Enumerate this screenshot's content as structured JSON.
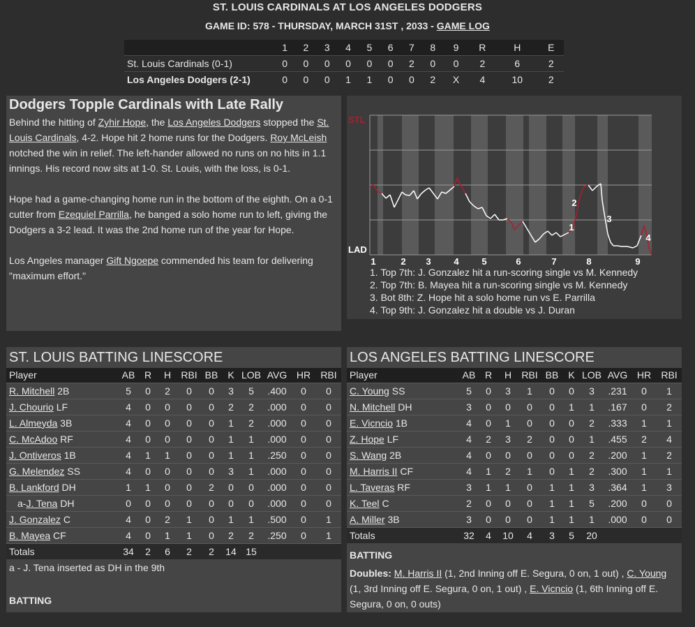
{
  "header": {
    "title": "ST. LOUIS CARDINALS AT LOS ANGELES DODGERS",
    "game_line": "GAME ID: 578 - THURSDAY, MARCH 31ST , 2033 - ",
    "game_log": "GAME LOG"
  },
  "linescore": {
    "innings": [
      "1",
      "2",
      "3",
      "4",
      "5",
      "6",
      "7",
      "8",
      "9",
      "R",
      "H",
      "E"
    ],
    "teams": [
      {
        "name": "St. Louis Cardinals (0-1)",
        "scores": [
          "0",
          "0",
          "0",
          "0",
          "0",
          "0",
          "2",
          "0",
          "0",
          "2",
          "6",
          "2"
        ]
      },
      {
        "name": "Los Angeles Dodgers (2-1)",
        "scores": [
          "0",
          "0",
          "0",
          "1",
          "1",
          "0",
          "0",
          "2",
          "X",
          "4",
          "10",
          "2"
        ]
      }
    ]
  },
  "recap": {
    "headline": "Dodgers Topple Cardinals with Late Rally",
    "p1": [
      {
        "t": "Behind the hitting of "
      },
      {
        "t": "Zyhir Hope",
        "link": true
      },
      {
        "t": ", the "
      },
      {
        "t": "Los Angeles Dodgers",
        "link": true
      },
      {
        "t": " stopped the "
      },
      {
        "t": "St. Louis Cardinals",
        "link": true
      },
      {
        "t": ", 4-2. Hope hit 2 home runs for the Dodgers. "
      },
      {
        "t": "Roy McLeish",
        "link": true
      },
      {
        "t": " notched the win in relief. The left-hander allowed no runs on no hits in 1.1 innings. His record now sits at 1-0. St. Louis, with the loss, is 0-1."
      }
    ],
    "p2": [
      {
        "t": "Hope had a game-changing home run in the bottom of the eighth. On a 0-1 cutter from "
      },
      {
        "t": "Ezequiel Parrilla",
        "link": true
      },
      {
        "t": ", he banged a solo home run to left, giving the Dodgers a 3-2 lead. It was the 2nd home run of the year for Hope."
      }
    ],
    "p3": [
      {
        "t": "Los Angeles manager "
      },
      {
        "t": "Gift Ngoepe",
        "link": true
      },
      {
        "t": " commended his team for delivering \"maximum effort.\""
      }
    ]
  },
  "win_probability": {
    "top_label": "STL",
    "bottom_label": "LAD",
    "inning_labels": [
      "1",
      "2",
      "3",
      "4",
      "5",
      "6",
      "7",
      "8",
      "9"
    ],
    "marker_labels": [
      "1",
      "2",
      "3",
      "4"
    ],
    "events": [
      "1. Top 7th: J. Gonzalez hit a run-scoring single vs M. Kennedy",
      "2. Top 7th: B. Mayea hit a run-scoring single vs M. Kennedy",
      "3. Bot 8th: Z. Hope hit a solo home run vs E. Parrilla",
      "4. Top 9th: J. Gonzalez hit a double vs J. Duran"
    ],
    "colors": {
      "stl": "#b01c2e",
      "lad": "#ffffff"
    }
  },
  "stl_batting": {
    "title": "ST. LOUIS BATTING LINESCORE",
    "columns": [
      "Player",
      "AB",
      "R",
      "H",
      "RBI",
      "BB",
      "K",
      "LOB",
      "AVG",
      "HR",
      "RBI"
    ],
    "rows": [
      {
        "name": "R. Mitchell",
        "pos": "2B",
        "stats": [
          "5",
          "0",
          "2",
          "0",
          "0",
          "3",
          "5",
          ".400",
          "0",
          "0"
        ]
      },
      {
        "name": "J. Chourio",
        "pos": "LF",
        "stats": [
          "4",
          "0",
          "0",
          "0",
          "0",
          "2",
          "2",
          ".000",
          "0",
          "0"
        ]
      },
      {
        "name": "L. Almeyda",
        "pos": "3B",
        "stats": [
          "4",
          "0",
          "0",
          "0",
          "0",
          "1",
          "2",
          ".000",
          "0",
          "0"
        ]
      },
      {
        "name": "C. McAdoo",
        "pos": "RF",
        "stats": [
          "4",
          "0",
          "0",
          "0",
          "0",
          "1",
          "1",
          ".000",
          "0",
          "0"
        ]
      },
      {
        "name": "J. Ontiveros",
        "pos": "1B",
        "stats": [
          "4",
          "1",
          "1",
          "0",
          "0",
          "1",
          "1",
          ".250",
          "0",
          "0"
        ]
      },
      {
        "name": "G. Melendez",
        "pos": "SS",
        "stats": [
          "4",
          "0",
          "0",
          "0",
          "0",
          "3",
          "1",
          ".000",
          "0",
          "0"
        ]
      },
      {
        "name": "B. Lankford",
        "pos": "DH",
        "stats": [
          "1",
          "1",
          "0",
          "0",
          "2",
          "0",
          "0",
          ".000",
          "0",
          "0"
        ]
      },
      {
        "name": "J. Tena",
        "prefix": "a-",
        "pos": "DH",
        "stats": [
          "0",
          "0",
          "0",
          "0",
          "0",
          "0",
          "0",
          ".000",
          "0",
          "0"
        ]
      },
      {
        "name": "J. Gonzalez",
        "pos": "C",
        "stats": [
          "4",
          "0",
          "2",
          "1",
          "0",
          "1",
          "1",
          ".500",
          "0",
          "1"
        ]
      },
      {
        "name": "B. Mayea",
        "pos": "CF",
        "stats": [
          "4",
          "0",
          "1",
          "1",
          "0",
          "2",
          "2",
          ".250",
          "0",
          "1"
        ]
      }
    ],
    "totals": {
      "label": "Totals",
      "stats": [
        "34",
        "2",
        "6",
        "2",
        "2",
        "14",
        "15",
        "",
        "",
        ""
      ]
    },
    "note": "a - J. Tena inserted as DH in the 9th",
    "batting_label": "BATTING"
  },
  "lad_batting": {
    "title": "LOS ANGELES BATTING LINESCORE",
    "columns": [
      "Player",
      "AB",
      "R",
      "H",
      "RBI",
      "BB",
      "K",
      "LOB",
      "AVG",
      "HR",
      "RBI"
    ],
    "rows": [
      {
        "name": "C. Young",
        "pos": "SS",
        "stats": [
          "5",
          "0",
          "3",
          "1",
          "0",
          "0",
          "3",
          ".231",
          "0",
          "1"
        ]
      },
      {
        "name": "N. Mitchell",
        "pos": "DH",
        "stats": [
          "3",
          "0",
          "0",
          "0",
          "0",
          "1",
          "1",
          ".167",
          "0",
          "2"
        ]
      },
      {
        "name": "E. Vicncio",
        "pos": "1B",
        "stats": [
          "4",
          "0",
          "1",
          "0",
          "0",
          "0",
          "2",
          ".333",
          "1",
          "1"
        ]
      },
      {
        "name": "Z. Hope",
        "pos": "LF",
        "stats": [
          "4",
          "2",
          "3",
          "2",
          "0",
          "0",
          "1",
          ".455",
          "2",
          "4"
        ]
      },
      {
        "name": "S. Wang",
        "pos": "2B",
        "stats": [
          "4",
          "0",
          "0",
          "0",
          "0",
          "0",
          "2",
          ".200",
          "1",
          "2"
        ]
      },
      {
        "name": "M. Harris II",
        "pos": "CF",
        "stats": [
          "4",
          "1",
          "2",
          "1",
          "0",
          "1",
          "2",
          ".300",
          "1",
          "1"
        ]
      },
      {
        "name": "L. Taveras",
        "pos": "RF",
        "stats": [
          "3",
          "1",
          "1",
          "0",
          "1",
          "1",
          "3",
          ".364",
          "1",
          "3"
        ]
      },
      {
        "name": "K. Teel",
        "pos": "C",
        "stats": [
          "2",
          "0",
          "0",
          "0",
          "1",
          "1",
          "5",
          ".200",
          "0",
          "0"
        ]
      },
      {
        "name": "A. Miller",
        "pos": "3B",
        "stats": [
          "3",
          "0",
          "0",
          "0",
          "1",
          "1",
          "1",
          ".000",
          "0",
          "0"
        ]
      }
    ],
    "totals": {
      "label": "Totals",
      "stats": [
        "32",
        "4",
        "10",
        "4",
        "3",
        "5",
        "20",
        "",
        "",
        ""
      ]
    },
    "batting_label": "BATTING",
    "doubles": [
      {
        "t": "Doubles: ",
        "bold": true
      },
      {
        "t": "M. Harris II",
        "link": true
      },
      {
        "t": " (1, 2nd Inning off E. Segura, 0 on, 1 out) , "
      },
      {
        "t": "C. Young",
        "link": true
      },
      {
        "t": " (1, 3rd Inning off E. Segura, 0 on, 1 out) , "
      },
      {
        "t": "E. Vicncio",
        "link": true
      },
      {
        "t": " (1, 6th Inning off E. Segura, 0 on, 0 outs)"
      }
    ]
  }
}
